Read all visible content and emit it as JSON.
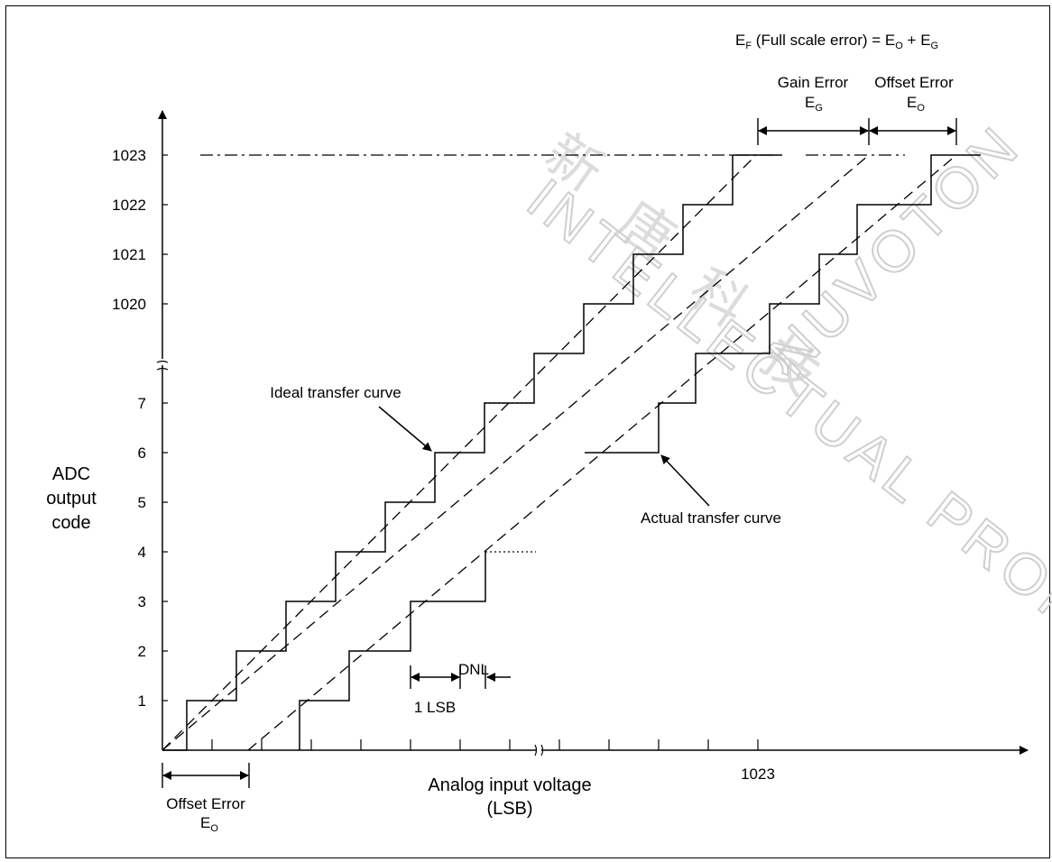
{
  "title": {
    "prefix": "E",
    "prefix_sub": "F",
    "mid": " (Full scale error) = E",
    "mid_sub": "O",
    "plus": " + E",
    "end_sub": "G"
  },
  "y_axis": {
    "label_lines": [
      "ADC",
      "output",
      "code"
    ],
    "ticks_low": [
      "1",
      "2",
      "3",
      "4",
      "5",
      "6",
      "7"
    ],
    "ticks_high": [
      "1020",
      "1021",
      "1022",
      "1023"
    ]
  },
  "x_axis": {
    "label_lines": [
      "Analog input voltage",
      "(LSB)"
    ],
    "tick_label": "1023"
  },
  "annotations": {
    "ideal": "Ideal transfer curve",
    "actual": "Actual transfer curve",
    "dnl": "DNL",
    "one_lsb": "1 LSB",
    "gain_error": "Gain Error",
    "gain_symbol": "E",
    "gain_sub": "G",
    "offset_error_top": "Offset Error",
    "offset_symbol_top": "E",
    "offset_sub_top": "O",
    "offset_error_bottom": "Offset Error",
    "offset_symbol_bottom": "E",
    "offset_sub_bottom": "O"
  },
  "watermark": {
    "cjk": [
      "新",
      "唐",
      "科",
      "技"
    ],
    "latin": "INTELLECTUAL PROPERTY",
    "brand": "NUVOTON"
  },
  "colors": {
    "ink": "#000000",
    "watermark": "#cfcfcf"
  }
}
